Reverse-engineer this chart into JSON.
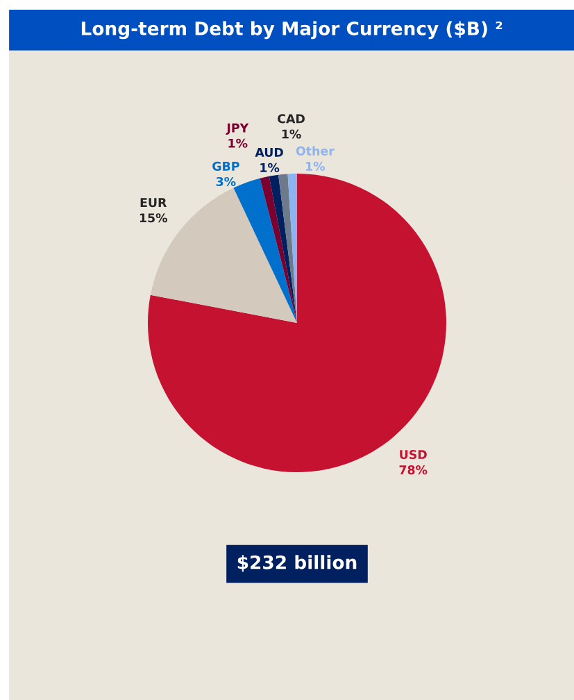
{
  "chart_data": {
    "type": "pie",
    "title": "Long-term Debt by Major Currency ($B) ²",
    "categories": [
      "USD",
      "EUR",
      "GBP",
      "JPY",
      "AUD",
      "CAD",
      "Other"
    ],
    "values": [
      78,
      15,
      3,
      1,
      1,
      1,
      1
    ],
    "colors": [
      "#c41230",
      "#d3c9bd",
      "#0070cc",
      "#7a0030",
      "#002060",
      "#6d7a8c",
      "#8db4f0"
    ],
    "value_labels": [
      "78%",
      "15%",
      "3%",
      "1%",
      "1%",
      "1%",
      "1%"
    ],
    "annotations": [
      "$232 billion"
    ]
  }
}
